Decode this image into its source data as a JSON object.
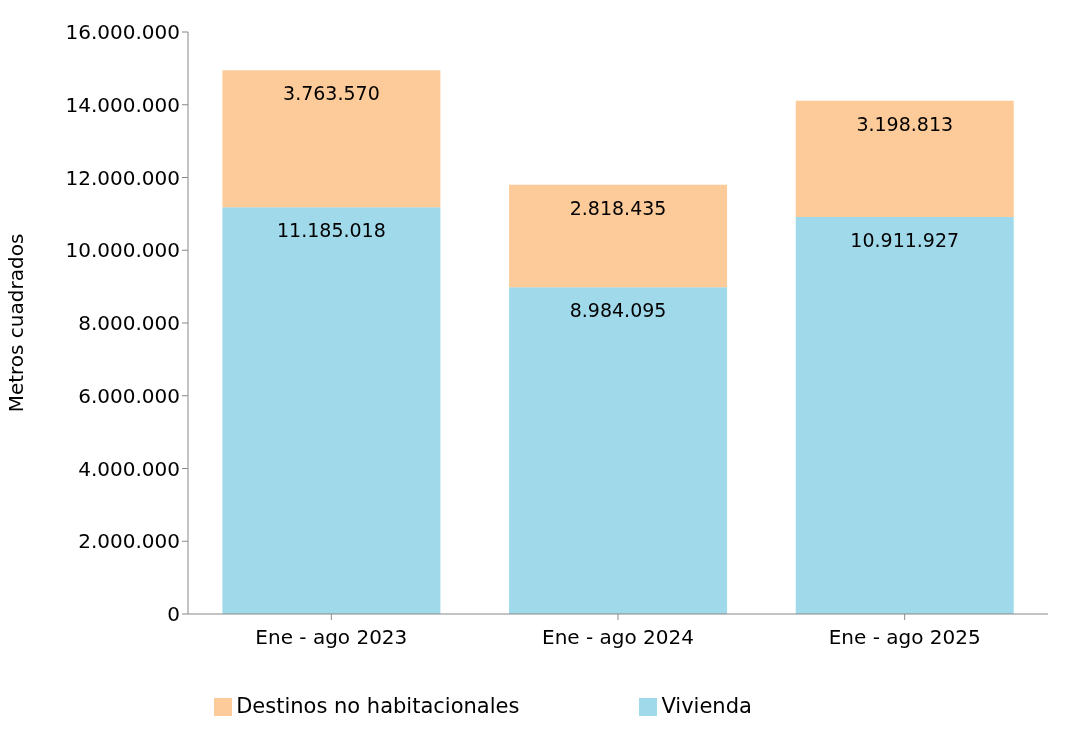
{
  "chart_data": {
    "type": "bar",
    "stacked": true,
    "ylabel": "Metros cuadrados",
    "categories": [
      "Ene - ago 2023",
      "Ene - ago 2024",
      "Ene - ago 2025"
    ],
    "series": [
      {
        "name": "Vivienda",
        "color": "#a0d9ea",
        "values": [
          11185018,
          8984095,
          10911927
        ],
        "value_labels": [
          "11.185.018",
          "8.984.095",
          "10.911.927"
        ]
      },
      {
        "name": "Destinos no habitacionales",
        "color": "#fdcb99",
        "values": [
          3763570,
          2818435,
          3198813
        ],
        "value_labels": [
          "3.763.570",
          "2.818.435",
          "3.198.813"
        ]
      }
    ],
    "ylim": [
      0,
      16000000
    ],
    "yticks": [
      {
        "value": 0,
        "label": "0"
      },
      {
        "value": 2000000,
        "label": "2.000.000"
      },
      {
        "value": 4000000,
        "label": "4.000.000"
      },
      {
        "value": 6000000,
        "label": "6.000.000"
      },
      {
        "value": 8000000,
        "label": "8.000.000"
      },
      {
        "value": 10000000,
        "label": "10.000.000"
      },
      {
        "value": 12000000,
        "label": "12.000.000"
      },
      {
        "value": 14000000,
        "label": "14.000.000"
      },
      {
        "value": 16000000,
        "label": "16.000.000"
      }
    ],
    "grid": false,
    "legend": "bottom"
  }
}
